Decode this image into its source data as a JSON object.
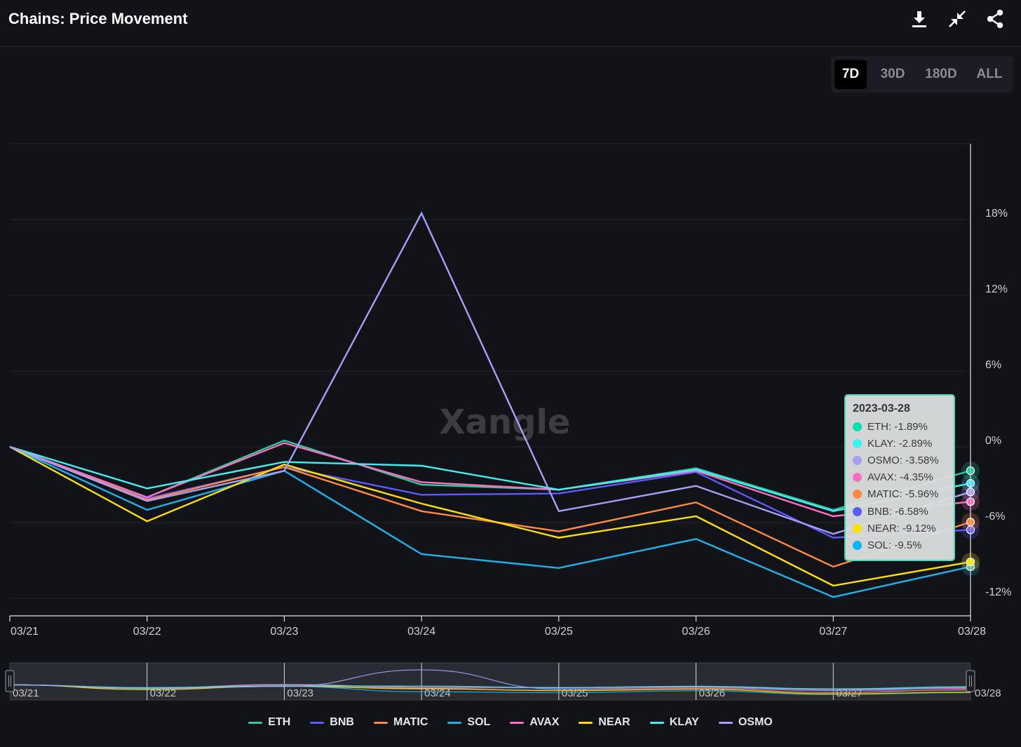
{
  "header": {
    "title": "Chains: Price Movement"
  },
  "toolbar": {
    "download_icon": "download-icon",
    "collapse_icon": "collapse-icon",
    "share_icon": "share-icon"
  },
  "range_buttons": [
    {
      "label": "7D",
      "active": true
    },
    {
      "label": "30D",
      "active": false
    },
    {
      "label": "180D",
      "active": false
    },
    {
      "label": "ALL",
      "active": false
    }
  ],
  "watermark": "Xangle",
  "tooltip": {
    "date": "2023-03-28",
    "rows": [
      {
        "label": "ETH: -1.89%",
        "color": "#00e0b0"
      },
      {
        "label": "KLAY: -2.89%",
        "color": "#3ff0f0"
      },
      {
        "label": "OSMO: -3.58%",
        "color": "#a5a0f5"
      },
      {
        "label": "AVAX: -4.35%",
        "color": "#ff6fc0"
      },
      {
        "label": "MATIC: -5.96%",
        "color": "#ff8a40"
      },
      {
        "label": "BNB: -6.58%",
        "color": "#5b5bff"
      },
      {
        "label": "NEAR: -9.12%",
        "color": "#ffe000"
      },
      {
        "label": "SOL: -9.5%",
        "color": "#00b7ff"
      }
    ]
  },
  "chart_data": {
    "type": "line",
    "x": [
      "03/21",
      "03/22",
      "03/23",
      "03/24",
      "03/25",
      "03/26",
      "03/27",
      "03/28"
    ],
    "y_ticks": [
      "18%",
      "12%",
      "6%",
      "0%",
      "-6%",
      "-12%"
    ],
    "y_tick_values": [
      18,
      12,
      6,
      0,
      -6,
      -12
    ],
    "ylim": [
      -13.5,
      24
    ],
    "series": [
      {
        "name": "ETH",
        "color": "#2fc8a4",
        "values": [
          0,
          -4,
          0.5,
          -3,
          -3.4,
          -1.7,
          -5.0,
          -1.89
        ]
      },
      {
        "name": "BNB",
        "color": "#5b5bff",
        "values": [
          0,
          -4.1,
          -1.6,
          -3.8,
          -3.7,
          -2.0,
          -7.2,
          -6.58
        ]
      },
      {
        "name": "MATIC",
        "color": "#ff8a40",
        "values": [
          0,
          -4.2,
          -1.6,
          -5.1,
          -6.7,
          -4.4,
          -9.5,
          -5.96
        ]
      },
      {
        "name": "SOL",
        "color": "#1cb3ec",
        "values": [
          0,
          -5.0,
          -1.9,
          -8.5,
          -9.6,
          -7.3,
          -11.9,
          -9.5
        ]
      },
      {
        "name": "AVAX",
        "color": "#ff6fc0",
        "values": [
          0,
          -4.0,
          0.3,
          -2.8,
          -3.4,
          -1.9,
          -5.5,
          -4.35
        ]
      },
      {
        "name": "NEAR",
        "color": "#ffe000",
        "values": [
          0,
          -5.9,
          -1.4,
          -4.5,
          -7.2,
          -5.5,
          -11.0,
          -9.12
        ]
      },
      {
        "name": "KLAY",
        "color": "#3ff0f0",
        "values": [
          0,
          -3.3,
          -1.2,
          -1.5,
          -3.4,
          -1.8,
          -5.1,
          -2.89
        ]
      },
      {
        "name": "OSMO",
        "color": "#a5a0f5",
        "values": [
          0,
          -4.3,
          -1.9,
          18.5,
          -5.1,
          -3.1,
          -6.9,
          -3.58
        ]
      }
    ]
  }
}
